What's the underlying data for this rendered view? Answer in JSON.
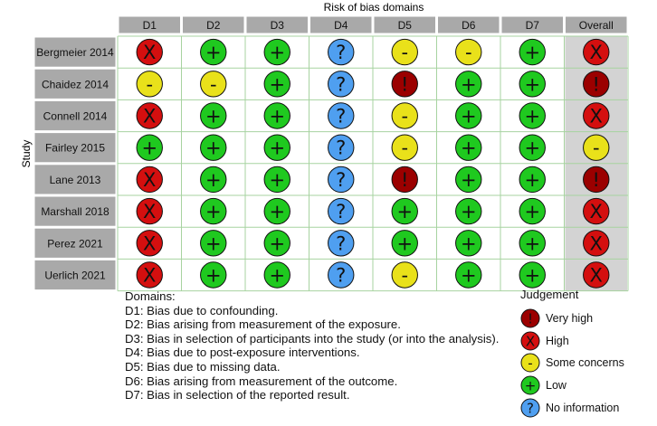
{
  "chart_data": {
    "type": "table",
    "title": "Risk of bias domains",
    "ylabel": "Study",
    "columns": [
      "D1",
      "D2",
      "D3",
      "D4",
      "D5",
      "D6",
      "D7",
      "Overall"
    ],
    "studies": [
      "Bergmeier 2014",
      "Chaidez 2014",
      "Connell 2014",
      "Fairley 2015",
      "Lane 2013",
      "Marshall 2018",
      "Perez 2021",
      "Uerlich 2021"
    ],
    "judgements": [
      [
        "high",
        "low",
        "low",
        "no_information",
        "some",
        "some",
        "low",
        "high"
      ],
      [
        "some",
        "some",
        "low",
        "no_information",
        "very_high",
        "low",
        "low",
        "very_high"
      ],
      [
        "high",
        "low",
        "low",
        "no_information",
        "some",
        "low",
        "low",
        "high"
      ],
      [
        "low",
        "low",
        "low",
        "no_information",
        "some",
        "low",
        "low",
        "some"
      ],
      [
        "high",
        "low",
        "low",
        "no_information",
        "very_high",
        "low",
        "low",
        "very_high"
      ],
      [
        "high",
        "low",
        "low",
        "no_information",
        "low",
        "low",
        "low",
        "high"
      ],
      [
        "high",
        "low",
        "low",
        "no_information",
        "low",
        "low",
        "low",
        "high"
      ],
      [
        "high",
        "low",
        "low",
        "no_information",
        "some",
        "low",
        "low",
        "high"
      ]
    ],
    "symbols": {
      "very_high": "!",
      "high": "X",
      "some": "-",
      "low": "+",
      "no_information": "?"
    },
    "colors": {
      "very_high": "#9b0000",
      "high": "#d40f0f",
      "some": "#e9e11a",
      "low": "#1fc91f",
      "no_information": "#4f9ff0",
      "header_fill": "#a9a9a9",
      "overall_fill": "#d3d3d3",
      "grid_line": "#a7d3a0"
    },
    "grid": true,
    "legend_position": "bottom"
  },
  "domains_legend": {
    "title": "Domains:",
    "items": [
      "D1: Bias due to confounding.",
      "D2: Bias arising from measurement of the exposure.",
      "D3: Bias in selection of participants into the study (or into the analysis).",
      "D4: Bias due to post-exposure interventions.",
      "D5: Bias due to missing data.",
      "D6: Bias arising from measurement of the outcome.",
      "D7: Bias in selection of the reported result."
    ]
  },
  "judgement_legend": {
    "title": "Judgement",
    "items": [
      {
        "key": "very_high",
        "symbol": "!",
        "label": "Very high"
      },
      {
        "key": "high",
        "symbol": "X",
        "label": "High"
      },
      {
        "key": "some",
        "symbol": "-",
        "label": "Some concerns"
      },
      {
        "key": "low",
        "symbol": "+",
        "label": "Low"
      },
      {
        "key": "no_information",
        "symbol": "?",
        "label": "No information"
      }
    ]
  }
}
